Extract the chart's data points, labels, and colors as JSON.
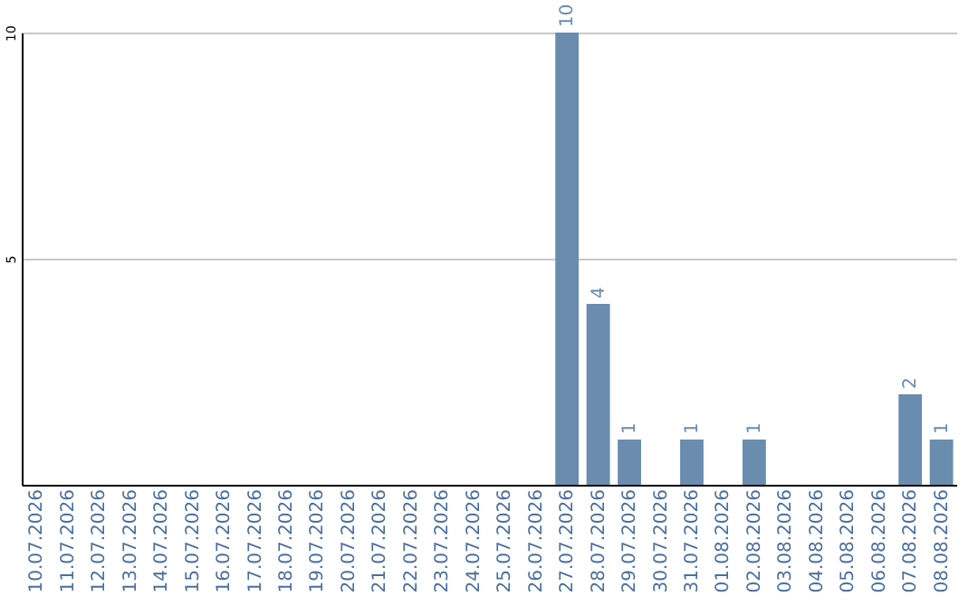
{
  "chart_data": {
    "type": "bar",
    "categories": [
      "10.07.2026",
      "11.07.2026",
      "12.07.2026",
      "13.07.2026",
      "14.07.2026",
      "15.07.2026",
      "16.07.2026",
      "17.07.2026",
      "18.07.2026",
      "19.07.2026",
      "20.07.2026",
      "21.07.2026",
      "22.07.2026",
      "23.07.2026",
      "24.07.2026",
      "25.07.2026",
      "26.07.2026",
      "27.07.2026",
      "28.07.2026",
      "29.07.2026",
      "30.07.2026",
      "31.07.2026",
      "01.08.2026",
      "02.08.2026",
      "03.08.2026",
      "04.08.2026",
      "05.08.2026",
      "06.08.2026",
      "07.08.2026",
      "08.08.2026"
    ],
    "values": [
      0,
      0,
      0,
      0,
      0,
      0,
      0,
      0,
      0,
      0,
      0,
      0,
      0,
      0,
      0,
      0,
      0,
      10,
      4,
      1,
      0,
      1,
      0,
      1,
      0,
      0,
      0,
      0,
      2,
      1
    ],
    "value_labels": [
      null,
      null,
      null,
      null,
      null,
      null,
      null,
      null,
      null,
      null,
      null,
      null,
      null,
      null,
      null,
      null,
      null,
      "10",
      "4",
      "1",
      null,
      "1",
      null,
      "1",
      null,
      null,
      null,
      null,
      "2",
      "1"
    ],
    "color": "#6a8caf",
    "ylim": [
      0,
      10
    ],
    "yticks": [
      5,
      10
    ],
    "grid": "y"
  }
}
